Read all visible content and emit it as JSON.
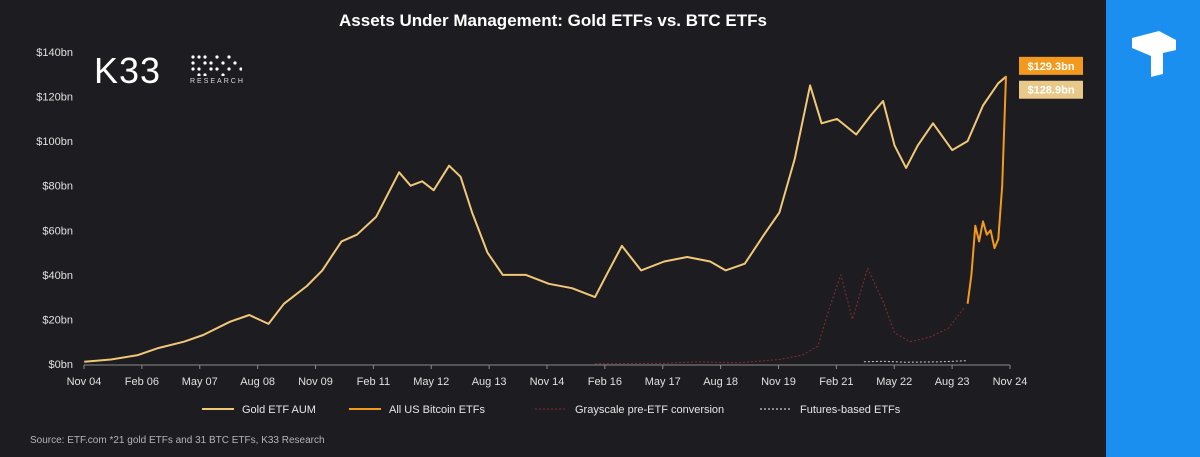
{
  "header": {
    "title": "Assets Under Management: Gold ETFs vs. BTC ETFs"
  },
  "brand": {
    "name": "K33",
    "sub": "RESEARCH"
  },
  "source": "Source: ETF.com *21 gold ETFs and 31 BTC ETFs, K33 Research",
  "colors": {
    "gold": "#f0c878",
    "btc": "#f39a1e",
    "grayscale": "#7a2a2a",
    "futures": "#cccccc",
    "side": "#1a8ff0"
  },
  "chart_data": {
    "type": "line",
    "title": "Assets Under Management: Gold ETFs vs. BTC ETFs",
    "xlabel": "",
    "ylabel": "",
    "x_range": [
      2004.83,
      2024.92
    ],
    "ylim": [
      0,
      140
    ],
    "y_ticks": [
      "$0bn",
      "$20bn",
      "$40bn",
      "$60bn",
      "$80bn",
      "$100bn",
      "$120bn",
      "$140bn"
    ],
    "x_ticks": [
      "Nov 04",
      "Feb 06",
      "May 07",
      "Aug 08",
      "Nov 09",
      "Feb 11",
      "May 12",
      "Aug 13",
      "Nov 14",
      "Feb 16",
      "May 17",
      "Aug 18",
      "Nov 19",
      "Feb 21",
      "May 22",
      "Aug 23",
      "Nov 24"
    ],
    "grid": false,
    "legend_position": "bottom",
    "end_labels": [
      "$129.3bn",
      "$128.9bn"
    ],
    "series": [
      {
        "name": "Gold ETF AUM",
        "x": [
          "2004-11",
          "2005-06",
          "2006-01",
          "2006-06",
          "2007-01",
          "2007-06",
          "2008-01",
          "2008-06",
          "2008-11",
          "2009-03",
          "2009-09",
          "2010-01",
          "2010-06",
          "2010-10",
          "2011-03",
          "2011-06",
          "2011-09",
          "2011-12",
          "2012-03",
          "2012-06",
          "2012-10",
          "2013-01",
          "2013-04",
          "2013-08",
          "2013-12",
          "2014-06",
          "2014-12",
          "2015-06",
          "2015-12",
          "2016-03",
          "2016-07",
          "2016-12",
          "2017-06",
          "2017-12",
          "2018-06",
          "2018-10",
          "2019-03",
          "2019-08",
          "2019-12",
          "2020-04",
          "2020-08",
          "2020-11",
          "2021-03",
          "2021-08",
          "2021-12",
          "2022-03",
          "2022-06",
          "2022-09",
          "2022-12",
          "2023-04",
          "2023-09",
          "2024-01",
          "2024-05",
          "2024-09",
          "2024-11"
        ],
        "values": [
          1,
          2,
          4,
          7,
          10,
          13,
          19,
          22,
          18,
          27,
          35,
          42,
          55,
          58,
          66,
          76,
          86,
          80,
          82,
          78,
          89,
          84,
          68,
          50,
          40,
          40,
          36,
          34,
          30,
          40,
          53,
          42,
          46,
          48,
          46,
          42,
          45,
          58,
          68,
          92,
          125,
          108,
          110,
          103,
          112,
          118,
          98,
          88,
          98,
          108,
          96,
          100,
          116,
          126,
          128.9
        ]
      },
      {
        "name": "All US Bitcoin ETFs",
        "x": [
          "2024-01",
          "2024-02",
          "2024-03",
          "2024-04",
          "2024-05",
          "2024-06",
          "2024-07",
          "2024-08",
          "2024-09",
          "2024-10",
          "2024-11"
        ],
        "values": [
          27,
          40,
          62,
          55,
          64,
          58,
          60,
          52,
          56,
          80,
          129.3
        ]
      },
      {
        "name": "Grayscale pre-ETF conversion",
        "x": [
          "2015-12",
          "2017-06",
          "2018-03",
          "2019-01",
          "2019-12",
          "2020-06",
          "2020-10",
          "2021-01",
          "2021-04",
          "2021-07",
          "2021-11",
          "2022-03",
          "2022-06",
          "2022-10",
          "2023-03",
          "2023-08",
          "2023-12"
        ],
        "values": [
          0.1,
          0.3,
          1,
          0.5,
          2,
          4,
          8,
          25,
          40,
          20,
          43,
          28,
          14,
          10,
          12,
          16,
          25
        ]
      },
      {
        "name": "Futures-based ETFs",
        "x": [
          "2021-10",
          "2022-03",
          "2022-09",
          "2023-06",
          "2024-01"
        ],
        "values": [
          1,
          1.2,
          0.8,
          1.0,
          1.5
        ]
      }
    ]
  }
}
